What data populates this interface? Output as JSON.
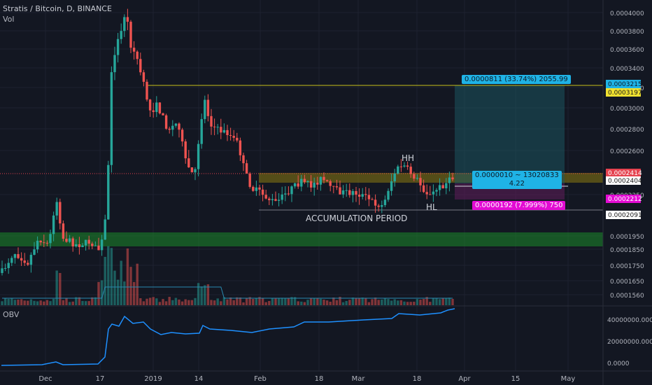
{
  "header": {
    "title": "Stratis / Bitcoin, D, BINANCE",
    "volume_label": "Vol"
  },
  "obv": {
    "label": "OBV"
  },
  "annotations": {
    "hh": "HH",
    "hl": "HL",
    "accumulation": "ACCUMULATION PERIOD"
  },
  "risk_reward": {
    "profit_label": "0.0000811 (33.74%) 2055.99",
    "mid_label_line1": "0.0000010 ~ 13020833",
    "mid_label_line2": "4.22",
    "loss_label": "0.0000192 (7.999%) 750"
  },
  "price_axis": {
    "ticks": [
      "0.0004000",
      "0.0003800",
      "0.0003600",
      "0.0003400",
      "0.0003200",
      "0.0003000",
      "0.0002800",
      "0.0002600",
      "0.0002250",
      "0.0001950",
      "0.0001850",
      "0.0001750",
      "0.0001650",
      "0.0001560"
    ],
    "badges": [
      {
        "text": "0.0003215",
        "bg": "#1fb3e6",
        "fg": "#0d1a26",
        "axis": "tp"
      },
      {
        "text": "0.0003197",
        "bg": "#f0e130",
        "fg": "#1a1a1a",
        "axis": "res"
      },
      {
        "text": "0.0002414",
        "bg": "#e5424f",
        "fg": "#ffffff",
        "axis": "last"
      },
      {
        "text": "0.0002404",
        "bg": "#ffffff",
        "fg": "#1a1a1a",
        "axis": "entry"
      },
      {
        "text": "0.0002212",
        "bg": "#e30bd3",
        "fg": "#ffffff",
        "axis": "sl"
      },
      {
        "text": "0.0002091",
        "bg": "#ffffff",
        "fg": "#1a1a1a",
        "axis": "low"
      }
    ]
  },
  "obv_axis": {
    "ticks": [
      "40000000.0000",
      "20000000.0000",
      "0.0000"
    ]
  },
  "time_axis": {
    "labels": [
      "Dec",
      "17",
      "2019",
      "14",
      "Feb",
      "18",
      "Mar",
      "18",
      "Apr",
      "15",
      "May"
    ]
  },
  "colors": {
    "background": "#131722",
    "up": "#26a69a",
    "down": "#ef5350",
    "grid": "#1e2230",
    "obv_line": "#1e90ff",
    "resistance": "#c7c11a",
    "support_zone": "#1b8a2a",
    "range_zone": "#8a7a10"
  },
  "chart_data": {
    "type": "candlestick",
    "title": "Stratis / Bitcoin, D, BINANCE",
    "y_range": [
      0.000152,
      0.00041
    ],
    "resistance_level": 0.0003197,
    "support_zone": [
      0.000187,
      0.000196
    ],
    "range_zone": [
      0.00024,
      0.000245
    ],
    "entry": 0.0002404,
    "target": 0.0003215,
    "stop": 0.0002212,
    "last_price": 0.0002414,
    "recent_low": 0.0002091
  }
}
